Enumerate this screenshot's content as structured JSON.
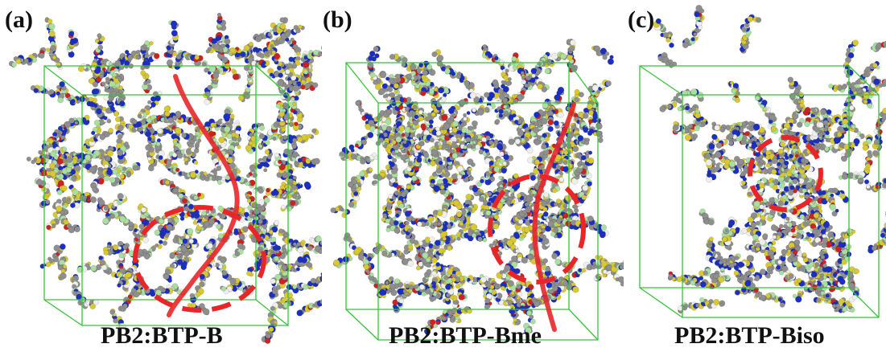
{
  "panels": [
    {
      "letter": "(a)",
      "caption": "PB2:BTP-B"
    },
    {
      "letter": "(b)",
      "caption": "PB2:BTP-Bme"
    },
    {
      "letter": "(c)",
      "caption": "PB2:BTP-Biso"
    }
  ],
  "colors": {
    "box_edge": "#39c239",
    "red_highlight": "#e8262a",
    "atom_carbon": "#8f8f8f",
    "atom_nitrogen": "#1b2fc4",
    "atom_sulfur": "#d9c930",
    "atom_fluorine": "#a9dfa0",
    "atom_oxygen": "#cc2222",
    "atom_hydrogen": "#eeeeee"
  }
}
